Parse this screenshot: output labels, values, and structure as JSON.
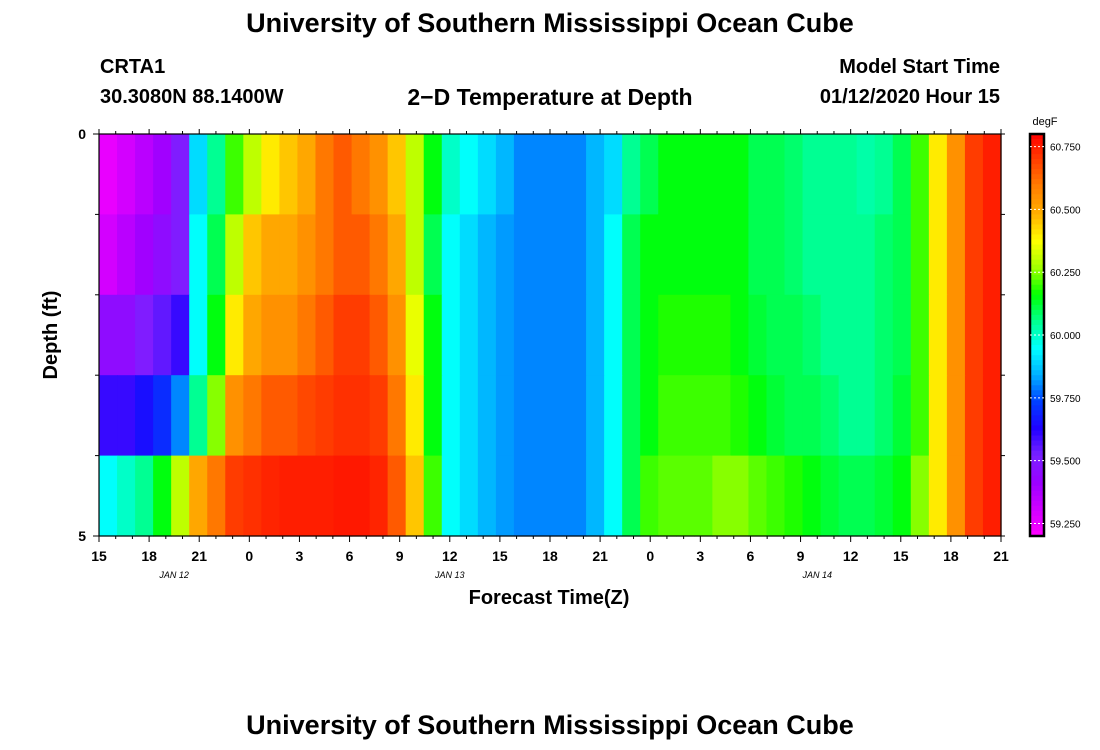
{
  "page": {
    "title_top": "University of Southern Mississippi Ocean Cube",
    "title_bottom": "University of Southern Mississippi Ocean Cube",
    "station_id": "CRTA1",
    "station_coords": "30.3080N 88.1400W",
    "plot_title": "2−D Temperature at Depth",
    "model_start_label": "Model Start Time",
    "model_start_value": "01/12/2020 Hour 15"
  },
  "chart_data": {
    "type": "heatmap",
    "title": "2−D Temperature at Depth",
    "xlabel": "Forecast Time(Z)",
    "ylabel": "Depth (ft)",
    "ylim": [
      0,
      5
    ],
    "y_tick_labels": [
      "0",
      "5"
    ],
    "x_hour_labels": [
      "15",
      "18",
      "21",
      "0",
      "3",
      "6",
      "9",
      "12",
      "15",
      "18",
      "21",
      "0",
      "3",
      "6",
      "9",
      "12",
      "15",
      "18",
      "21"
    ],
    "date_labels": [
      {
        "text": "JAN 12",
        "hour_offset": 4.5
      },
      {
        "text": "JAN 13",
        "hour_offset": 21
      },
      {
        "text": "JAN 14",
        "hour_offset": 43
      }
    ],
    "colorbar": {
      "unit": "degF",
      "min": 59.2,
      "max": 60.8,
      "ticks": [
        "60.750",
        "60.500",
        "60.250",
        "60.000",
        "59.750",
        "59.500",
        "59.250"
      ],
      "colors": [
        "#ff00ff",
        "#d000ff",
        "#9a00ff",
        "#7a22ff",
        "#2000ff",
        "#0040ff",
        "#00b0ff",
        "#00ffff",
        "#00ff90",
        "#00ff00",
        "#a0ff00",
        "#ffff00",
        "#ffb000",
        "#ff8000",
        "#ff4000",
        "#ff0000"
      ]
    },
    "layers": [
      {
        "depth": "0-1 ft",
        "values": [
          59.25,
          59.3,
          59.35,
          59.4,
          59.5,
          59.9,
          60.05,
          60.2,
          60.3,
          60.4,
          60.45,
          60.5,
          60.6,
          60.65,
          60.6,
          60.55,
          60.45,
          60.3,
          60.15,
          60.0,
          59.95,
          59.9,
          59.85,
          59.8,
          59.8,
          59.8,
          59.8,
          59.85,
          59.9,
          60.05,
          60.1,
          60.15,
          60.15,
          60.15,
          60.15,
          60.15,
          60.1,
          60.1,
          60.08,
          60.05,
          60.05,
          60.05,
          60.03,
          60.05,
          60.1,
          60.2,
          60.4,
          60.55,
          60.7,
          60.75
        ]
      },
      {
        "depth": "1-2 ft",
        "values": [
          59.3,
          59.35,
          59.4,
          59.45,
          59.5,
          59.95,
          60.1,
          60.3,
          60.45,
          60.5,
          60.5,
          60.55,
          60.6,
          60.65,
          60.65,
          60.6,
          60.5,
          60.3,
          60.1,
          59.95,
          59.9,
          59.85,
          59.82,
          59.8,
          59.8,
          59.8,
          59.8,
          59.85,
          59.95,
          60.1,
          60.15,
          60.15,
          60.15,
          60.15,
          60.15,
          60.15,
          60.1,
          60.1,
          60.08,
          60.05,
          60.05,
          60.05,
          60.05,
          60.08,
          60.1,
          60.2,
          60.4,
          60.55,
          60.7,
          60.75
        ]
      },
      {
        "depth": "2-3 ft",
        "values": [
          59.45,
          59.45,
          59.5,
          59.55,
          59.6,
          59.95,
          60.15,
          60.4,
          60.5,
          60.55,
          60.55,
          60.6,
          60.65,
          60.7,
          60.7,
          60.65,
          60.55,
          60.35,
          60.15,
          59.95,
          59.9,
          59.85,
          59.82,
          59.8,
          59.8,
          59.8,
          59.8,
          59.85,
          59.95,
          60.1,
          60.15,
          60.18,
          60.18,
          60.18,
          60.18,
          60.15,
          60.12,
          60.1,
          60.1,
          60.08,
          60.05,
          60.05,
          60.05,
          60.08,
          60.1,
          60.2,
          60.4,
          60.55,
          60.7,
          60.75
        ]
      },
      {
        "depth": "3-4 ft",
        "values": [
          59.6,
          59.6,
          59.65,
          59.7,
          59.8,
          60.05,
          60.25,
          60.55,
          60.6,
          60.65,
          60.65,
          60.68,
          60.7,
          60.72,
          60.72,
          60.7,
          60.6,
          60.4,
          60.15,
          59.95,
          59.9,
          59.85,
          59.82,
          59.8,
          59.8,
          59.8,
          59.8,
          59.85,
          59.95,
          60.1,
          60.15,
          60.2,
          60.2,
          60.2,
          60.2,
          60.18,
          60.15,
          60.12,
          60.1,
          60.1,
          60.08,
          60.05,
          60.05,
          60.08,
          60.12,
          60.2,
          60.4,
          60.55,
          60.7,
          60.75
        ]
      },
      {
        "depth": "4-5 ft",
        "values": [
          59.95,
          60.0,
          60.05,
          60.15,
          60.3,
          60.5,
          60.6,
          60.7,
          60.72,
          60.74,
          60.75,
          60.75,
          60.75,
          60.76,
          60.76,
          60.74,
          60.65,
          60.45,
          60.2,
          59.95,
          59.9,
          59.85,
          59.82,
          59.8,
          59.8,
          59.8,
          59.8,
          59.85,
          59.95,
          60.1,
          60.2,
          60.22,
          60.22,
          60.22,
          60.25,
          60.25,
          60.22,
          60.2,
          60.18,
          60.15,
          60.12,
          60.1,
          60.1,
          60.12,
          60.15,
          60.25,
          60.4,
          60.55,
          60.7,
          60.75
        ]
      }
    ]
  }
}
